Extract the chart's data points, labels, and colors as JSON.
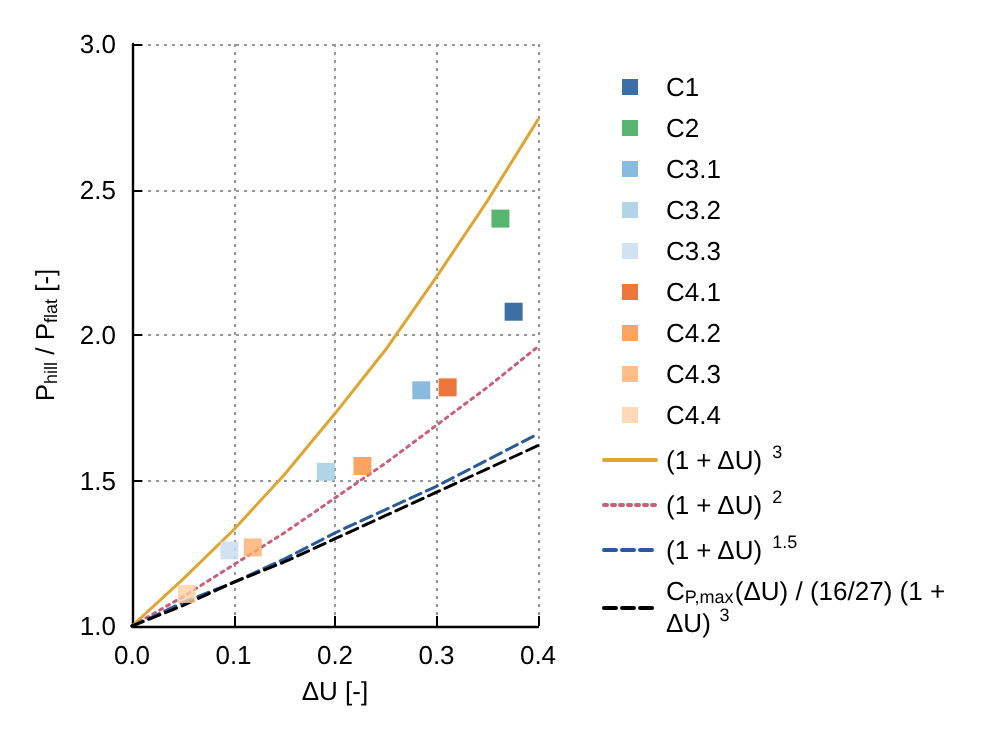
{
  "chart_data": {
    "type": "scatter",
    "xlabel": "ΔU [-]",
    "ylabel": "P$_{hill}$ / P$_{flat}$ [-]",
    "xlim": [
      0,
      0.4
    ],
    "ylim": [
      1,
      3
    ],
    "xticks": [
      {
        "value": 0,
        "label": "0.0"
      },
      {
        "value": 0.1,
        "label": "0.1"
      },
      {
        "value": 0.2,
        "label": "0.2"
      },
      {
        "value": 0.3,
        "label": "0.3"
      },
      {
        "value": 0.4,
        "label": "0.4"
      }
    ],
    "yticks": [
      {
        "value": 1,
        "label": "1.0"
      },
      {
        "value": 1.5,
        "label": "1.5"
      },
      {
        "value": 2,
        "label": "2.0"
      },
      {
        "value": 2.5,
        "label": "2.5"
      },
      {
        "value": 3,
        "label": "3.0"
      }
    ],
    "grid": true,
    "legend": "right",
    "marker": "square",
    "series": [
      {
        "name": "C1",
        "color": "#0d4a8e",
        "x": [
          0.376
        ],
        "values": [
          2.08
        ]
      },
      {
        "name": "C2",
        "color": "#2ea14e",
        "x": [
          0.363
        ],
        "values": [
          2.4
        ]
      },
      {
        "name": "C3.1",
        "color": "#6aaad6",
        "x": [
          0.285
        ],
        "values": [
          1.81
        ]
      },
      {
        "name": "C3.2",
        "color": "#9ecae1",
        "x": [
          0.191
        ],
        "values": [
          1.53
        ]
      },
      {
        "name": "C3.3",
        "color": "#c6dbef",
        "x": [
          0.096
        ],
        "values": [
          1.26
        ]
      },
      {
        "name": "C4.1",
        "color": "#e6550d",
        "x": [
          0.311
        ],
        "values": [
          1.82
        ]
      },
      {
        "name": "C4.2",
        "color": "#fd8d3c",
        "x": [
          0.227
        ],
        "values": [
          1.55
        ]
      },
      {
        "name": "C4.3",
        "color": "#fdae6b",
        "x": [
          0.119
        ],
        "values": [
          1.27
        ]
      },
      {
        "name": "C4.4",
        "color": "#fdd0a2",
        "x": [
          0.054
        ],
        "values": [
          1.11
        ]
      },
      {
        "name": "(1 + ΔU)$^{3}$",
        "type": "line",
        "marker": "none",
        "line_style": "solid",
        "color": "#e0a530",
        "x": [
          0,
          0.05,
          0.1,
          0.15,
          0.2,
          0.25,
          0.3,
          0.35,
          0.4
        ],
        "values": [
          1,
          1.16,
          1.33,
          1.52,
          1.73,
          1.95,
          2.2,
          2.46,
          2.74
        ]
      },
      {
        "name": "(1 + ΔU)$^{2}$",
        "type": "line",
        "marker": "none",
        "line_style": "dotted",
        "color": "#c8607a",
        "x": [
          0,
          0.05,
          0.1,
          0.15,
          0.2,
          0.25,
          0.3,
          0.35,
          0.4
        ],
        "values": [
          1,
          1.1,
          1.21,
          1.32,
          1.44,
          1.56,
          1.69,
          1.82,
          1.96
        ]
      },
      {
        "name": "(1 + ΔU)$^{1.5}$",
        "type": "line",
        "marker": "none",
        "line_style": "dashed",
        "color": "#2a5a9a",
        "x": [
          0,
          0.05,
          0.1,
          0.15,
          0.2,
          0.25,
          0.3,
          0.35,
          0.4
        ],
        "values": [
          1,
          1.08,
          1.15,
          1.23,
          1.32,
          1.4,
          1.48,
          1.57,
          1.66
        ]
      },
      {
        "name": "C$_{P,max}$(ΔU) / (16/27) (1 + ΔU)$^{3}$",
        "type": "line",
        "marker": "none",
        "line_style": "dashed",
        "color": "#000000",
        "x": [
          0,
          0.05,
          0.1,
          0.15,
          0.2,
          0.25,
          0.3,
          0.35,
          0.4
        ],
        "values": [
          1,
          1.07,
          1.15,
          1.22,
          1.3,
          1.38,
          1.46,
          1.54,
          1.62
        ]
      }
    ]
  }
}
